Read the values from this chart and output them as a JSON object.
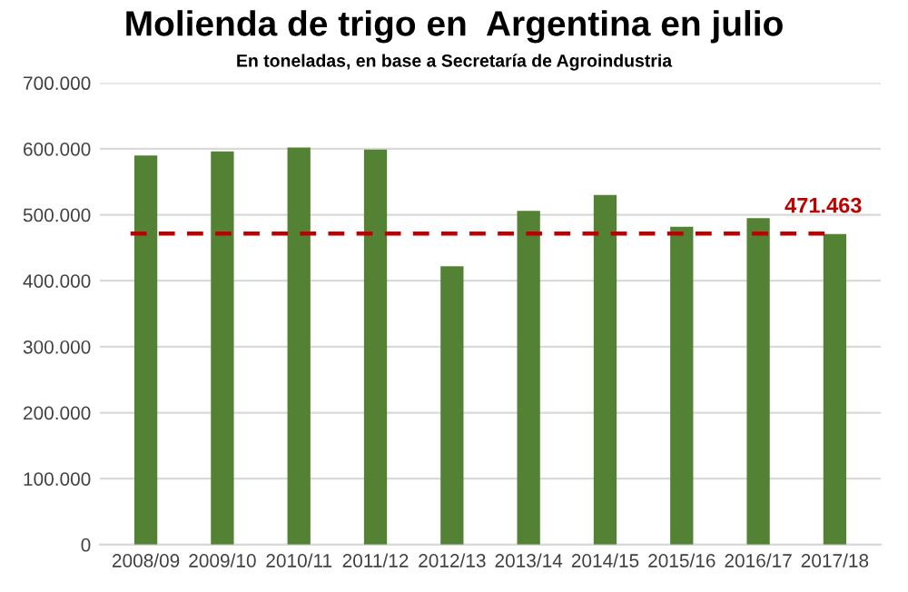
{
  "chart_data": {
    "type": "bar",
    "title": "Molienda de trigo en  Argentina en julio",
    "subtitle": "En toneladas, en base a Secretaría de Agroindustria",
    "categories": [
      "2008/09",
      "2009/10",
      "2010/11",
      "2011/12",
      "2012/13",
      "2013/14",
      "2014/15",
      "2015/16",
      "2016/17",
      "2017/18"
    ],
    "values": [
      590000,
      596000,
      602000,
      599000,
      422000,
      506000,
      530000,
      482000,
      495000,
      471000
    ],
    "color": "#548235",
    "ylim": [
      0,
      700000
    ],
    "yticks": [
      {
        "value": 0,
        "label": "0"
      },
      {
        "value": 100000,
        "label": "100.000"
      },
      {
        "value": 200000,
        "label": "200.000"
      },
      {
        "value": 300000,
        "label": "300.000"
      },
      {
        "value": 400000,
        "label": "400.000"
      },
      {
        "value": 500000,
        "label": "500.000"
      },
      {
        "value": 600000,
        "label": "600.000"
      },
      {
        "value": 700000,
        "label": "700.000"
      }
    ],
    "grid": "y",
    "ref_lines": [
      {
        "axis": "y",
        "value": 471463,
        "label": "471.463",
        "color": "#c00000",
        "line_style": "dashed"
      }
    ]
  }
}
